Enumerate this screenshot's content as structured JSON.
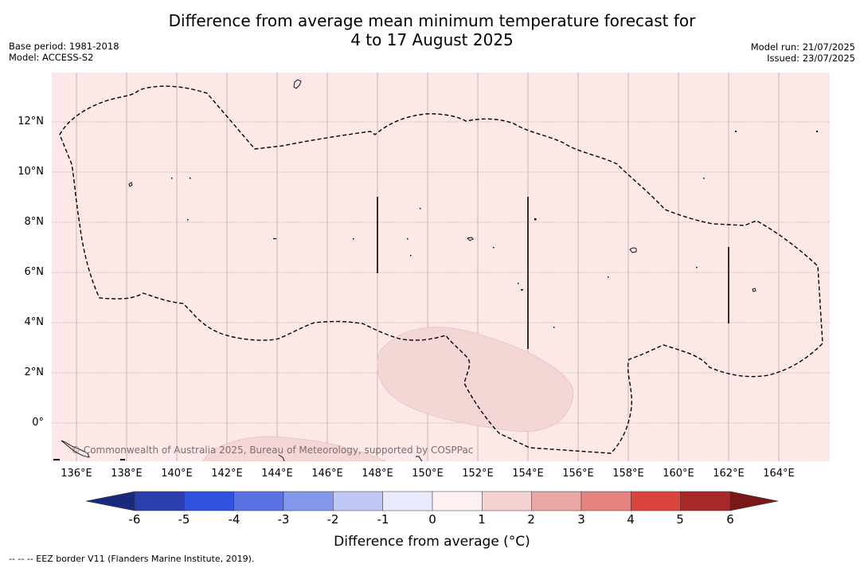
{
  "title_line1": "Difference from average mean minimum temperature forecast for",
  "title_line2": "4 to 17 August 2025",
  "meta": {
    "base_period": "Base period: 1981-2018",
    "model": "Model: ACCESS-S2",
    "model_run": "Model run: 21/07/2025",
    "issued": "Issued: 23/07/2025"
  },
  "map": {
    "lat_labels": [
      "12°N",
      "10°N",
      "8°N",
      "6°N",
      "4°N",
      "2°N",
      "0°"
    ],
    "lon_labels": [
      "136°E",
      "138°E",
      "140°E",
      "142°E",
      "144°E",
      "146°E",
      "148°E",
      "150°E",
      "152°E",
      "154°E",
      "156°E",
      "158°E",
      "160°E",
      "162°E",
      "164°E"
    ],
    "copyright": "© Commonwealth of Australia 2025, Bureau of Meteorology, supported by COSPPac",
    "background_color": "#fbe8e7",
    "anomaly_fill_color": "#f4d6d5"
  },
  "colorbar": {
    "ticks": [
      "-6",
      "-5",
      "-4",
      "-3",
      "-2",
      "-1",
      "0",
      "1",
      "2",
      "3",
      "4",
      "5",
      "6"
    ],
    "colors": [
      "#2a3fae",
      "#2f53e0",
      "#5a72e3",
      "#8497ec",
      "#c0c8f5",
      "#e8ebfb",
      "#fdf0f0",
      "#f4d4d3",
      "#eba7a3",
      "#e5847e",
      "#d9453d",
      "#a8282a"
    ],
    "under_color": "#1a2a7a",
    "over_color": "#7a1818",
    "label": "Difference from average (°C)"
  },
  "footnote": "--  --  -- EEZ border V11 (Flanders Marine Institute, 2019)."
}
